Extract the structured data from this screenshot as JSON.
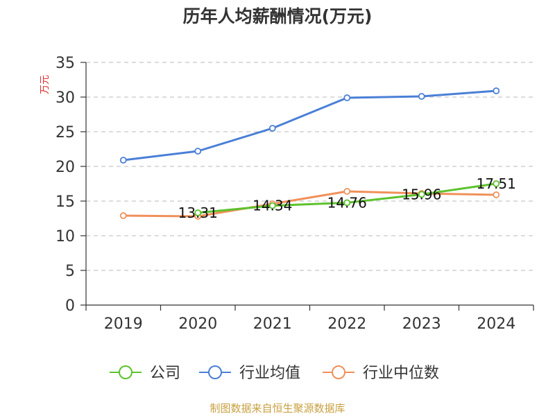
{
  "chart_data": {
    "type": "line",
    "title": "历年人均薪酬情况(万元)",
    "ylabel": "万元",
    "xlabel": "",
    "categories": [
      "2019",
      "2020",
      "2021",
      "2022",
      "2023",
      "2024"
    ],
    "ylim": [
      0,
      35
    ],
    "yticks": [
      0,
      5,
      10,
      15,
      20,
      25,
      30,
      35
    ],
    "grid": true,
    "legend_position": "bottom",
    "series": [
      {
        "name": "公司",
        "color": "#5dc22d",
        "values": [
          null,
          13.31,
          14.34,
          14.76,
          15.96,
          17.51
        ],
        "labels": [
          null,
          "13.31",
          "14.34",
          "14.76",
          "15.96",
          "17.51"
        ]
      },
      {
        "name": "行业均值",
        "color": "#4a7fd6",
        "values": [
          20.9,
          22.2,
          25.5,
          29.9,
          30.1,
          30.9
        ]
      },
      {
        "name": "行业中位数",
        "color": "#f0905a",
        "values": [
          12.9,
          12.8,
          14.6,
          16.4,
          16.1,
          15.9
        ]
      }
    ]
  },
  "source_text": "制图数据来自恒生聚源数据库"
}
